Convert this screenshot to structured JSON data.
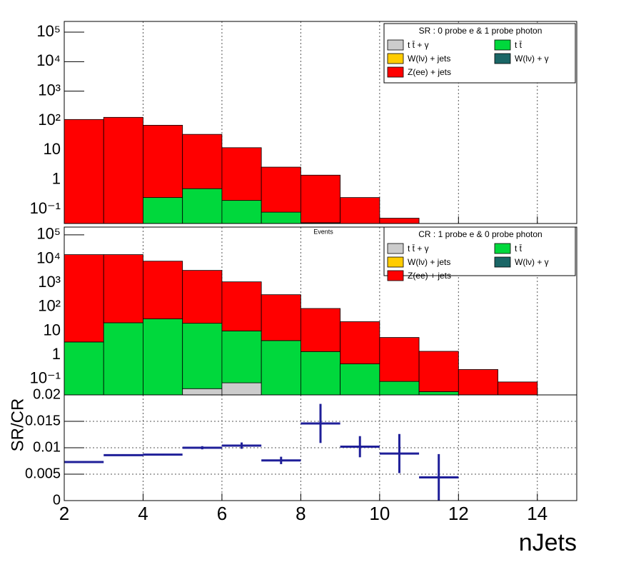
{
  "chart_data": [
    {
      "type": "histogram",
      "stacked": true,
      "log_y": true,
      "grid_x": true,
      "legend": "upper right",
      "legend_title": "SR : 0 probe e & 1 probe photon",
      "bins": [
        2,
        3,
        4,
        5,
        6,
        7,
        8,
        9,
        10,
        11,
        12,
        13,
        14,
        15
      ],
      "xlim": [
        2,
        15
      ],
      "xticks": [
        2,
        4,
        6,
        8,
        10,
        12,
        14
      ],
      "ylim": [
        0.033,
        230000
      ],
      "yticks": [
        {
          "value": 100000,
          "label": "10⁵"
        },
        {
          "value": 10000,
          "label": "10⁴"
        },
        {
          "value": 1000,
          "label": "10³"
        },
        {
          "value": 100,
          "label": "10²"
        },
        10,
        1,
        {
          "value": 0.1,
          "label": "10⁻¹"
        }
      ],
      "series": [
        {
          "name": "t t̄ + γ",
          "color": "#cccccc",
          "values": [
            0,
            0,
            0,
            0,
            0,
            0,
            0,
            0,
            0,
            0,
            0,
            0,
            0
          ]
        },
        {
          "name": "t t̄",
          "color": "#00d83c",
          "values": [
            0,
            0,
            0.25,
            0.5,
            0.2,
            0.08,
            0.035,
            0,
            0,
            0,
            0,
            0,
            0
          ]
        },
        {
          "name": "W(lν) + jets",
          "color": "#ffcc00",
          "values": [
            0,
            0,
            0,
            0,
            0,
            0,
            0,
            0,
            0,
            0,
            0,
            0,
            0
          ]
        },
        {
          "name": "W(lν) + γ",
          "color": "#1a6666",
          "values": [
            0,
            0,
            0,
            0,
            0,
            0,
            0,
            0,
            0,
            0,
            0,
            0,
            0
          ]
        },
        {
          "name": "Z(ee) + jets",
          "color": "#ff0000",
          "values": [
            110,
            130,
            70,
            34,
            12,
            2.6,
            1.4,
            0.25,
            0.05,
            0,
            0,
            0,
            0
          ]
        }
      ]
    },
    {
      "type": "histogram",
      "stacked": true,
      "log_y": true,
      "grid_x": true,
      "legend": "upper right",
      "y_label": "Events",
      "legend_title": "CR : 1 probe e & 0 probe photon",
      "bins": [
        2,
        3,
        4,
        5,
        6,
        7,
        8,
        9,
        10,
        11,
        12,
        13,
        14,
        15
      ],
      "xlim": [
        2,
        15
      ],
      "xticks": [
        2,
        4,
        6,
        8,
        10,
        12,
        14
      ],
      "ylim": [
        0.022,
        210000
      ],
      "yticks": [
        {
          "value": 100000,
          "label": "10⁵"
        },
        {
          "value": 10000,
          "label": "10⁴"
        },
        {
          "value": 1000,
          "label": "10³"
        },
        {
          "value": 100,
          "label": "10²"
        },
        10,
        1,
        {
          "value": 0.1,
          "label": "10⁻¹"
        }
      ],
      "series": [
        {
          "name": "t t̄ + γ",
          "color": "#cccccc",
          "values": [
            0,
            0,
            0,
            0.04,
            0.07,
            0,
            0,
            0,
            0,
            0,
            0,
            0,
            0
          ]
        },
        {
          "name": "t t̄",
          "color": "#00d83c",
          "values": [
            3.5,
            22,
            32,
            21,
            10,
            4,
            1.4,
            0.43,
            0.08,
            0.03,
            0,
            0,
            0
          ]
        },
        {
          "name": "W(lν) + jets",
          "color": "#ffcc00",
          "values": [
            0,
            0,
            0,
            0,
            0,
            0,
            0,
            0,
            0,
            0,
            0,
            0,
            0
          ]
        },
        {
          "name": "W(lν) + γ",
          "color": "#1a6666",
          "values": [
            0,
            0,
            0,
            0,
            0,
            0,
            0,
            0,
            0,
            0,
            0,
            0,
            0
          ]
        },
        {
          "name": "Z(ee) + jets",
          "color": "#ff0000",
          "values": [
            15000,
            15000,
            8000,
            3300,
            1100,
            320,
            85,
            24,
            5.3,
            1.4,
            0.25,
            0.076,
            0
          ]
        }
      ]
    },
    {
      "type": "errorbar",
      "grid_x": true,
      "grid_y": true,
      "color": "#1f1f99",
      "x_label": "nJets",
      "y_label": "SR/CR",
      "xlim": [
        2,
        15
      ],
      "xticks": [
        2,
        4,
        6,
        8,
        10,
        12,
        14
      ],
      "ylim": [
        0,
        0.02
      ],
      "yticks": [
        0,
        0.005,
        0.01,
        0.015,
        0.02
      ],
      "x": [
        2.5,
        3.5,
        4.5,
        5.5,
        6.5,
        7.5,
        8.5,
        9.5,
        10.5,
        11.5
      ],
      "xerr": [
        0.5,
        0.5,
        0.5,
        0.5,
        0.5,
        0.5,
        0.5,
        0.5,
        0.5,
        0.5
      ],
      "values": [
        0.0073,
        0.0086,
        0.0087,
        0.01,
        0.0104,
        0.0076,
        0.0146,
        0.0102,
        0.0089,
        0.0044
      ],
      "yerr": [
        0.0002,
        0.0001,
        0.0001,
        0.0003,
        0.0006,
        0.0007,
        0.0037,
        0.002,
        0.0037,
        0.0044
      ]
    }
  ]
}
